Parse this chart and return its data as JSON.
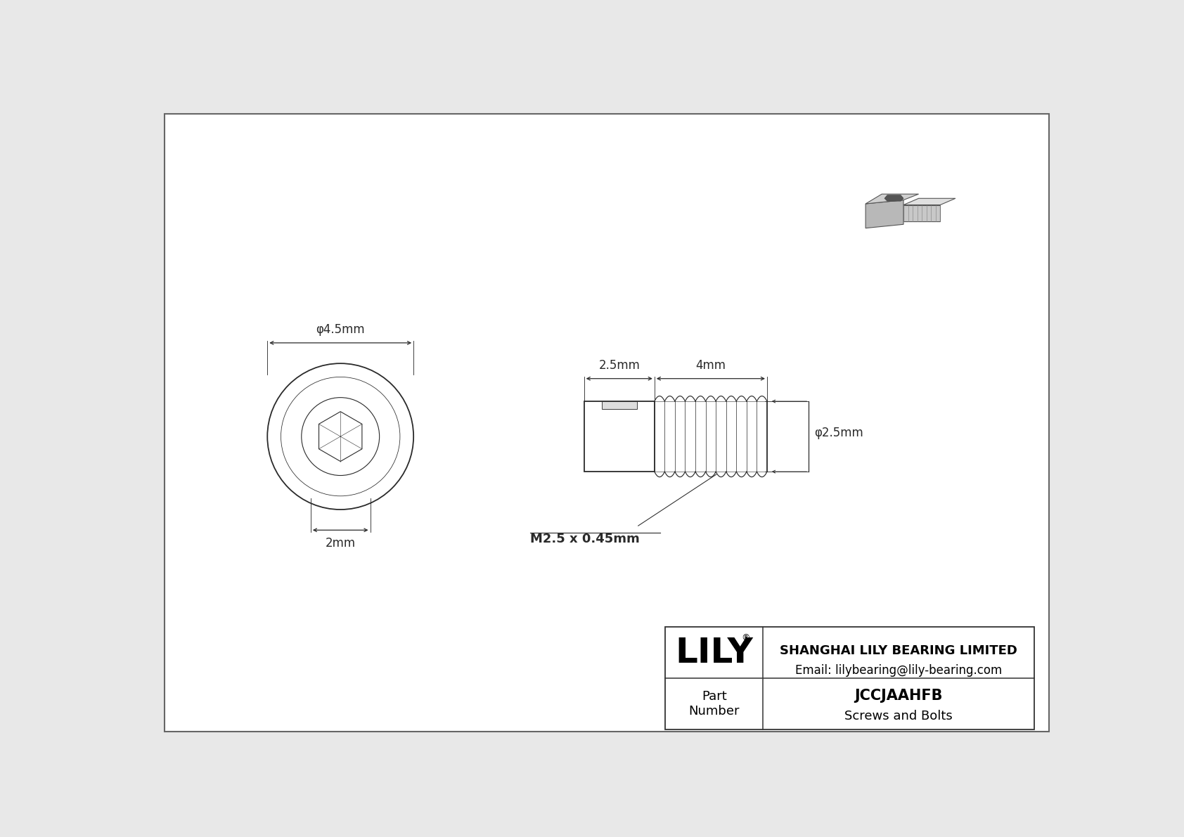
{
  "bg_color": "#e8e8e8",
  "drawing_bg": "#ffffff",
  "line_color": "#2a2a2a",
  "dim_color": "#2a2a2a",
  "title_company": "SHANGHAI LILY BEARING LIMITED",
  "title_email": "Email: lilybearing@lily-bearing.com",
  "part_label": "Part\nNumber",
  "part_number": "JCCJAAHFB",
  "part_type": "Screws and Bolts",
  "brand": "LILY",
  "brand_reg": "®",
  "dim_outer": "φ4.5mm",
  "dim_inner": "2mm",
  "dim_head": "2.5mm",
  "dim_thread": "4mm",
  "dim_thread_dia": "φ2.5mm",
  "dim_thread_label": "M2.5 x 0.45mm",
  "font_size_dim": 12,
  "font_size_brand": 36,
  "font_size_part": 13,
  "font_size_title": 13,
  "font_size_part_num": 15
}
